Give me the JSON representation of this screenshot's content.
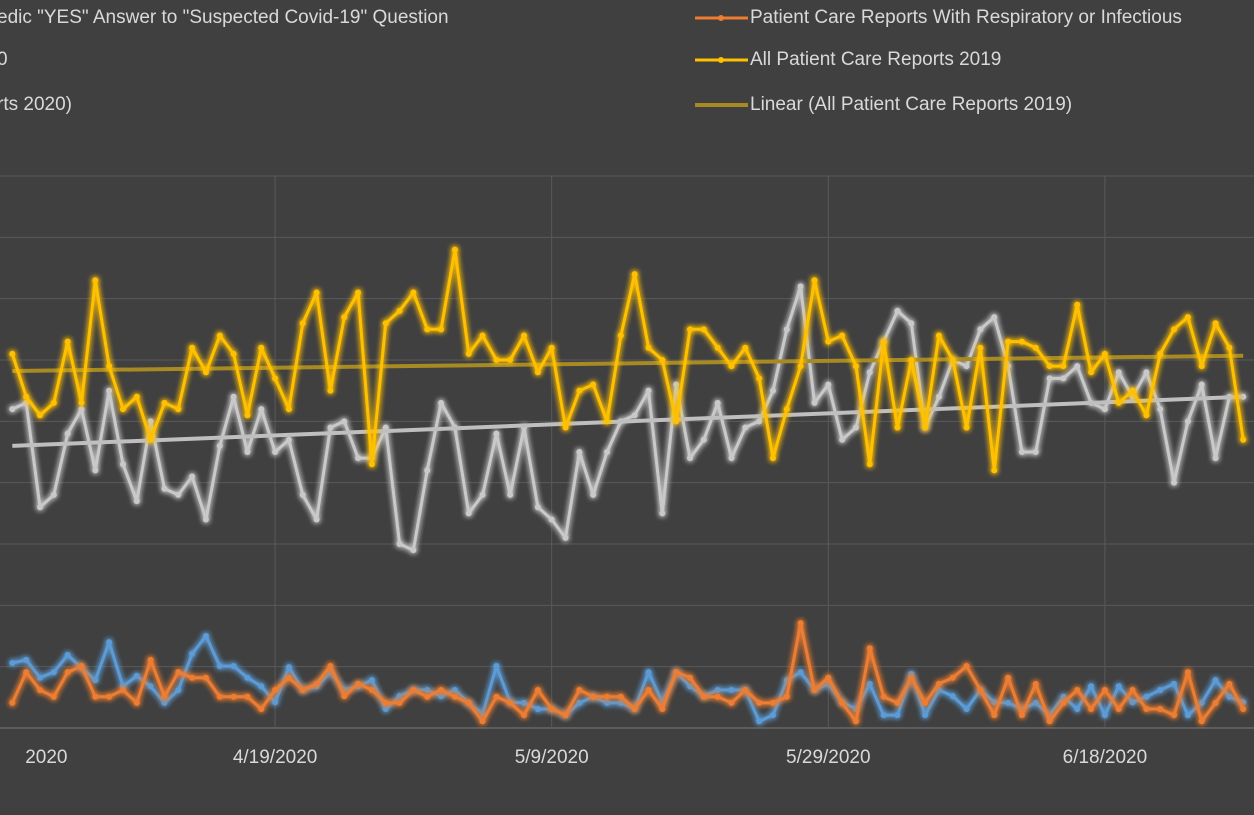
{
  "chart_data": {
    "type": "line",
    "x": [
      "3/31/2020",
      "4/1/2020",
      "4/2/2020",
      "4/3/2020",
      "4/4/2020",
      "4/5/2020",
      "4/6/2020",
      "4/7/2020",
      "4/8/2020",
      "4/9/2020",
      "4/10/2020",
      "4/11/2020",
      "4/12/2020",
      "4/13/2020",
      "4/14/2020",
      "4/15/2020",
      "4/16/2020",
      "4/17/2020",
      "4/18/2020",
      "4/19/2020",
      "4/20/2020",
      "4/21/2020",
      "4/22/2020",
      "4/23/2020",
      "4/24/2020",
      "4/25/2020",
      "4/26/2020",
      "4/27/2020",
      "4/28/2020",
      "4/29/2020",
      "4/30/2020",
      "5/1/2020",
      "5/2/2020",
      "5/3/2020",
      "5/4/2020",
      "5/5/2020",
      "5/6/2020",
      "5/7/2020",
      "5/8/2020",
      "5/9/2020",
      "5/10/2020",
      "5/11/2020",
      "5/12/2020",
      "5/13/2020",
      "5/14/2020",
      "5/15/2020",
      "5/16/2020",
      "5/17/2020",
      "5/18/2020",
      "5/19/2020",
      "5/20/2020",
      "5/21/2020",
      "5/22/2020",
      "5/23/2020",
      "5/24/2020",
      "5/25/2020",
      "5/26/2020",
      "5/27/2020",
      "5/28/2020",
      "5/29/2020",
      "5/30/2020",
      "5/31/2020",
      "6/1/2020",
      "6/2/2020",
      "6/3/2020",
      "6/4/2020",
      "6/5/2020",
      "6/6/2020",
      "6/7/2020",
      "6/8/2020",
      "6/9/2020",
      "6/10/2020",
      "6/11/2020",
      "6/12/2020",
      "6/13/2020",
      "6/14/2020",
      "6/15/2020",
      "6/16/2020",
      "6/17/2020",
      "6/18/2020",
      "6/19/2020",
      "6/20/2020",
      "6/21/2020",
      "6/22/2020",
      "6/23/2020",
      "6/24/2020",
      "6/25/2020",
      "6/26/2020",
      "6/27/2020",
      "6/28/2020"
    ],
    "series": [
      {
        "name": "edic \"YES\" Answer to \"Suspected Covid-19\" Question",
        "color": "#5b9bd5",
        "values": [
          10.6,
          11.1,
          8.2,
          9.1,
          11.9,
          9.8,
          7.8,
          14.0,
          6.8,
          8.5,
          6.8,
          4.1,
          6.2,
          12.1,
          15.0,
          10.1,
          10.1,
          8.2,
          6.8,
          4.2,
          9.9,
          6.2,
          6.8,
          9.1,
          6.2,
          6.8,
          7.8,
          3.1,
          5.2,
          6.2,
          6.2,
          5.2,
          6.2,
          4.1,
          2.3,
          10.1,
          4.2,
          4.1,
          3.1,
          3.1,
          2.1,
          4.1,
          5.1,
          4.1,
          4.1,
          3.1,
          9.1,
          4.2,
          9.1,
          6.8,
          5.2,
          6.2,
          6.2,
          6.2,
          1.1,
          2.1,
          7.8,
          9.1,
          6.2,
          7.2,
          4.2,
          3.1,
          7.2,
          2.1,
          2.1,
          8.8,
          2.1,
          6.2,
          5.2,
          3.1,
          6.2,
          4.2,
          4.1,
          3.1,
          4.1,
          2.1,
          5.1,
          3.1,
          6.8,
          2.1,
          6.8,
          4.2,
          5.1,
          6.2,
          7.2,
          2.1,
          4.1,
          7.8,
          5.1,
          4.2
        ]
      },
      {
        "name": "0",
        "color": "#c9c9c9",
        "values": [
          52,
          53,
          36,
          38,
          48,
          52,
          42,
          55,
          43,
          37,
          50,
          39,
          38,
          41,
          34,
          46,
          54,
          45,
          52,
          45,
          47,
          38,
          34,
          49,
          50,
          44,
          44,
          49,
          30,
          29,
          42,
          53,
          49,
          35,
          38,
          48,
          38,
          49,
          36,
          34,
          31,
          45,
          38,
          45,
          50,
          51,
          55,
          35,
          56,
          44,
          47,
          53,
          44,
          49,
          50,
          55,
          65,
          72,
          53,
          56,
          47,
          49,
          58,
          63,
          68,
          66,
          49,
          54,
          60,
          59,
          65,
          67,
          59,
          45,
          45,
          57,
          57,
          59,
          53,
          52,
          58,
          54,
          58,
          52,
          40,
          50,
          56,
          44,
          54,
          54
        ]
      },
      {
        "name": "rts 2020)",
        "color": "#bfbfbf",
        "trend": true,
        "x": [
          "3/31/2020",
          "6/28/2020"
        ],
        "values": [
          46,
          54
        ]
      },
      {
        "name": "Patient Care Reports With Respiratory or Infectious",
        "color": "#ed7d31",
        "values": [
          4.1,
          9.1,
          6.2,
          5.1,
          9.1,
          10.1,
          5.1,
          5.1,
          6.2,
          4.1,
          11.1,
          5.1,
          9.1,
          8.2,
          8.2,
          5.1,
          5.1,
          5.1,
          3.1,
          6.2,
          8.2,
          6.2,
          7.2,
          10.1,
          5.2,
          7.2,
          6.2,
          4.1,
          4.1,
          6.2,
          5.1,
          6.2,
          5.1,
          4.1,
          1.1,
          5.1,
          4.1,
          2.1,
          6.2,
          3.1,
          2.1,
          6.2,
          5.1,
          5.1,
          5.1,
          3.1,
          6.2,
          3.1,
          9.1,
          8.2,
          5.1,
          5.1,
          4.1,
          6.2,
          4.1,
          4.1,
          5.1,
          17.1,
          6.2,
          8.2,
          4.1,
          1.1,
          13.0,
          5.1,
          4.1,
          8.2,
          4.1,
          7.2,
          8.2,
          10.1,
          6.2,
          2.1,
          8.2,
          2.1,
          7.2,
          1.1,
          4.1,
          6.2,
          3.1,
          6.2,
          3.1,
          6.2,
          3.1,
          3.1,
          2.1,
          9.1,
          1.1,
          4.1,
          7.2,
          3.1
        ]
      },
      {
        "name": "All Patient Care Reports 2019",
        "color": "#ffc000",
        "values": [
          61,
          54,
          51,
          53,
          63,
          53,
          73,
          59,
          52,
          54,
          47,
          53,
          52,
          62,
          58,
          64,
          61,
          51,
          62,
          57,
          52,
          66,
          71,
          55,
          67,
          71,
          43,
          66,
          68,
          71,
          65,
          65,
          78,
          61,
          64,
          60,
          60,
          64,
          58,
          62,
          49,
          55,
          56,
          50,
          64,
          74,
          62,
          60,
          50,
          65,
          65,
          62,
          59,
          62,
          57,
          44,
          52,
          59,
          73,
          63,
          64,
          59,
          43,
          63,
          49,
          60,
          49,
          64,
          60,
          49,
          62,
          42,
          63,
          63,
          62,
          59,
          59,
          69,
          58,
          61,
          53,
          55,
          51,
          61,
          65,
          67,
          59,
          66,
          62,
          47
        ]
      },
      {
        "name": "Linear (All Patient Care Reports 2019)",
        "color": "#a88a22",
        "trend": true,
        "x": [
          "3/31/2020",
          "6/28/2020"
        ],
        "values": [
          58.2,
          60.7
        ]
      }
    ],
    "xlim": [
      "3/30/2020",
      "7/1/2020"
    ],
    "xticks": [
      {
        "value": "3/30/2020",
        "label": "2020"
      },
      "4/19/2020",
      "5/9/2020",
      "5/29/2020",
      "6/18/2020"
    ],
    "ylim": [
      0,
      90
    ],
    "yticks": [
      0,
      10,
      20,
      30,
      40,
      50,
      60,
      70,
      80,
      90
    ],
    "grid": true
  }
}
